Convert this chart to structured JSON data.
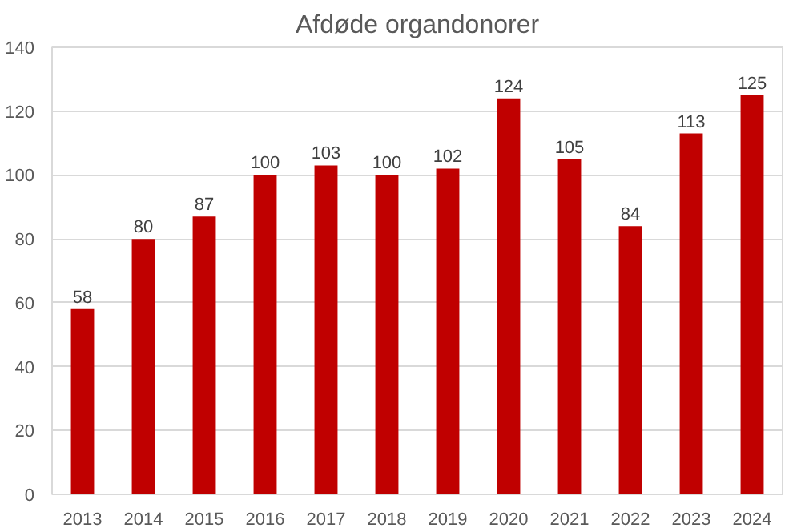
{
  "chart_data": {
    "type": "bar",
    "title": "Afdøde organdonorer",
    "categories": [
      "2013",
      "2014",
      "2015",
      "2016",
      "2017",
      "2018",
      "2019",
      "2020",
      "2021",
      "2022",
      "2023",
      "2024"
    ],
    "values": [
      58,
      80,
      87,
      100,
      103,
      100,
      102,
      124,
      105,
      84,
      113,
      125
    ],
    "color": "#c00000",
    "ylim": [
      0,
      140
    ],
    "yticks": [
      0,
      20,
      40,
      60,
      80,
      100,
      120,
      140
    ],
    "grid": "y",
    "data_labels": true
  }
}
